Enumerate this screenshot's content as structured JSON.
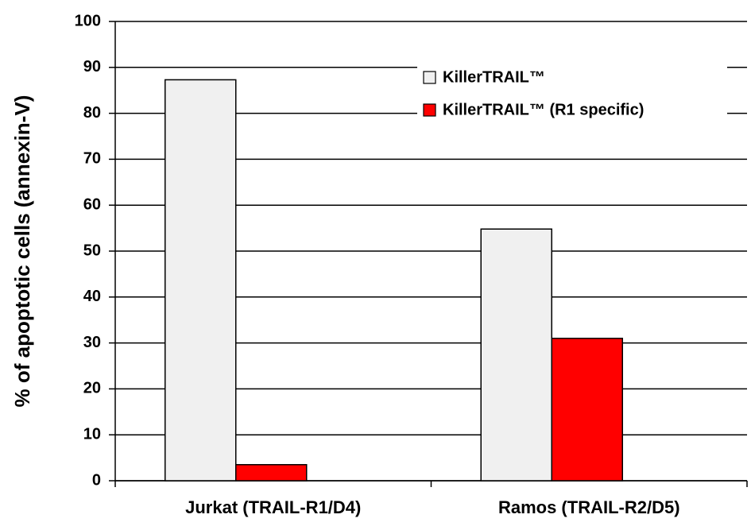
{
  "chart_data": {
    "type": "bar",
    "y_label": "% of apoptotic cells (annexin-V)",
    "categories": [
      "Jurkat (TRAIL-R1/D4)",
      "Ramos (TRAIL-R2/D5)"
    ],
    "series": [
      {
        "name": "KillerTRAIL™",
        "color": "#f0f0f0",
        "values": [
          87.3,
          54.8
        ]
      },
      {
        "name": "KillerTRAIL™ (R1 specific)",
        "color": "#ff0000",
        "values": [
          3.5,
          31
        ]
      }
    ],
    "ylim": [
      0,
      100
    ],
    "yticks": [
      0,
      10,
      20,
      30,
      40,
      50,
      60,
      70,
      80,
      90,
      100
    ],
    "grid": true,
    "legend": "upper right"
  }
}
